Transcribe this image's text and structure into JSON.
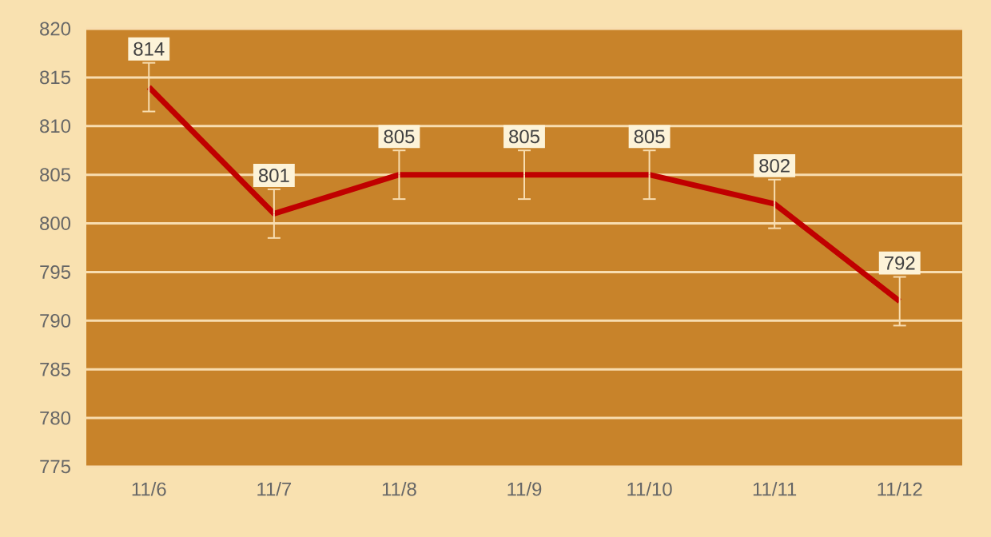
{
  "chart_data": {
    "type": "line",
    "categories": [
      "11/6",
      "11/7",
      "11/8",
      "11/9",
      "11/10",
      "11/11",
      "11/12"
    ],
    "values": [
      814,
      801,
      805,
      805,
      805,
      802,
      792
    ],
    "errors": [
      2.5,
      2.5,
      2.5,
      2.5,
      2.5,
      2.5,
      2.5
    ],
    "color": "#c00000",
    "ylim": [
      775,
      820
    ],
    "yticks": [
      775,
      780,
      785,
      790,
      795,
      800,
      805,
      810,
      815,
      820
    ],
    "grid": "y",
    "data_labels": true,
    "marker": "none",
    "line_style": "solid"
  }
}
